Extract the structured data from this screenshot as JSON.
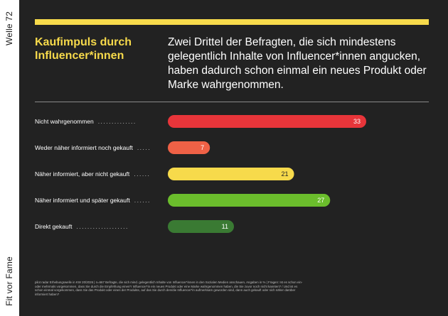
{
  "sidebar": {
    "top_label": "Welle 72",
    "bottom_label": "Fit vor Fame"
  },
  "header": {
    "title": "Kaufimpuls durch Influencer*innen",
    "subtitle": "Zwei Drittel der Befragten, die sich mindestens gelegentlich Inhalte von Influencer*innen angucken, haben dadurch schon einmal ein neues Produkt oder Marke wahrgenommen."
  },
  "colors": {
    "accent": "#F7DA4B",
    "panel": "#222222",
    "title": "#F7DA4B"
  },
  "chart_data": {
    "type": "bar",
    "orientation": "horizontal",
    "categories": [
      "Nicht wahrgenommen",
      "Weder näher informiert noch gekauft",
      "Näher informiert, aber nicht gekauft",
      "Näher informiert und später gekauft",
      "Direkt gekauft"
    ],
    "values": [
      33,
      7,
      21,
      27,
      11
    ],
    "bar_colors": [
      "#E8353A",
      "#EF6146",
      "#F7DA4B",
      "#6BBD2C",
      "#3A7A33"
    ],
    "value_label_colors": [
      "#ffffff",
      "#ffffff",
      "#222222",
      "#ffffff",
      "#ffffff"
    ],
    "xlim": [
      0,
      33
    ],
    "grid": false
  },
  "footnote": "pilot radar Erhebungswelle in KW 20/2026 | n=667 Befragte, die sich mind. gelegentlich Inhalte von Influencer*innen in den Sozialen Medien anschauen, Angaben in % | Fragen: Ist es schon ein- oder mehrmals vorgekommen, dass Sie durch die Empfehlung eines*r Influencer*in ein neues Produkt oder eine Marke wahrgenommen haben, die Sie zuvor noch nicht kannten? / Und ist es schon einmal vorgekommen, dass Sie das Produkt oder eines der Produkte, auf das Sie durch den/die Influencer*in aufmerksam geworden sind, dann auch gekauft oder sich näher darüber informiert haben?"
}
